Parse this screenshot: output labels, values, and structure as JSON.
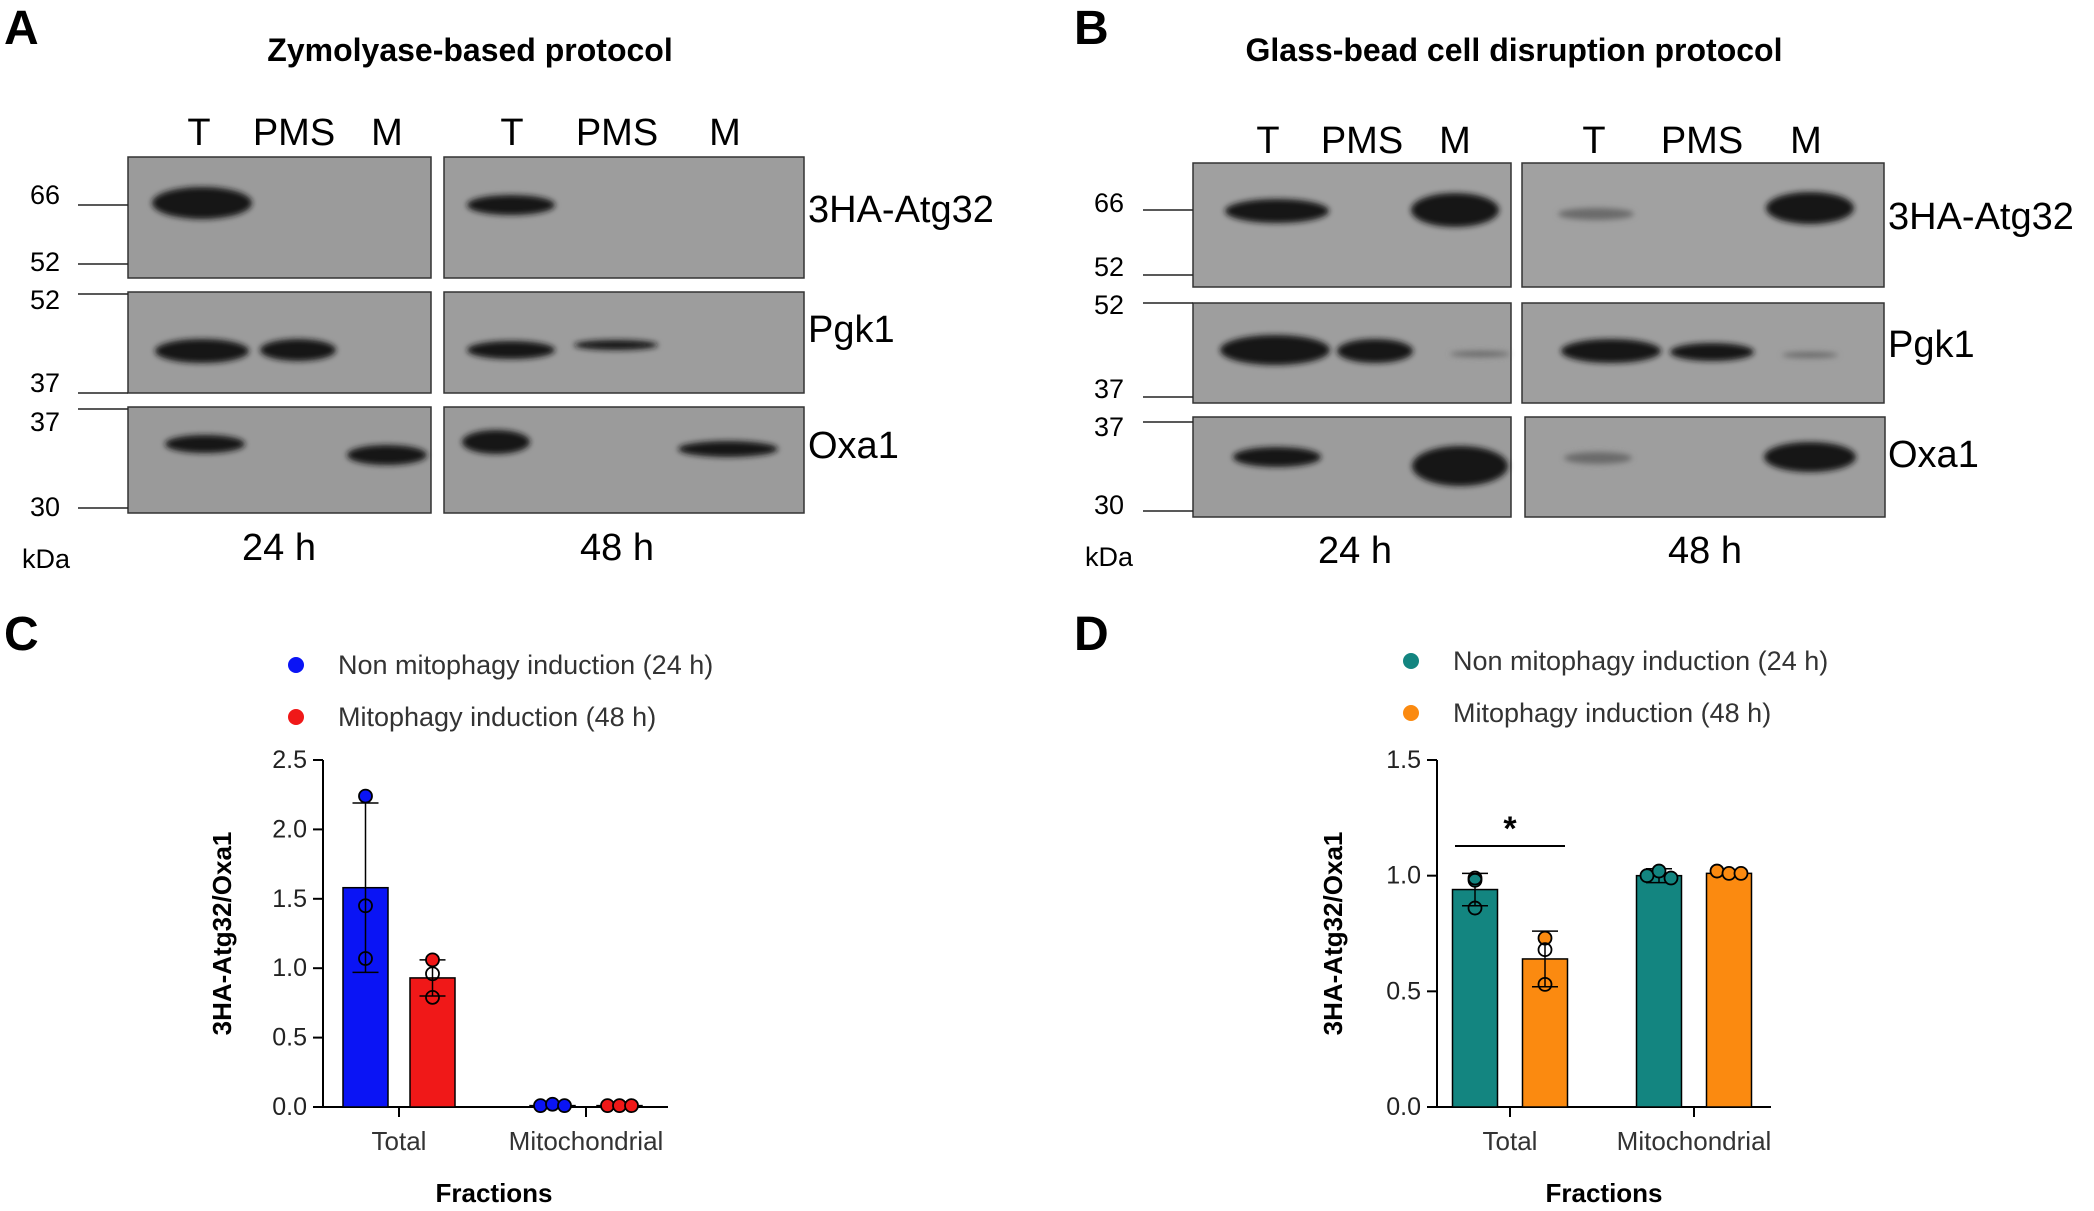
{
  "panels": {
    "A": {
      "letter": "A",
      "title": "Zymolyase-based protocol",
      "lanes_24h": [
        "T",
        "PMS",
        "M"
      ],
      "lanes_48h": [
        "T",
        "PMS",
        "M"
      ],
      "proteins": [
        "3HA-Atg32",
        "Pgk1",
        "Oxa1"
      ],
      "mw_markers": [
        "66",
        "52",
        "52",
        "37",
        "37",
        "30"
      ],
      "kda_label": "kDa",
      "time_labels": [
        "24 h",
        "48 h"
      ]
    },
    "B": {
      "letter": "B",
      "title": "Glass-bead cell disruption protocol",
      "lanes_24h": [
        "T",
        "PMS",
        "M"
      ],
      "lanes_48h": [
        "T",
        "PMS",
        "M"
      ],
      "proteins": [
        "3HA-Atg32",
        "Pgk1",
        "Oxa1"
      ],
      "mw_markers": [
        "66",
        "52",
        "52",
        "37",
        "37",
        "30"
      ],
      "kda_label": "kDa",
      "time_labels": [
        "24 h",
        "48 h"
      ]
    },
    "C": {
      "letter": "C"
    },
    "D": {
      "letter": "D"
    }
  },
  "colors": {
    "blot_bg": "#9a9a9a",
    "band": "#151515",
    "c_series1": "#0a14f5",
    "c_series2": "#f01818",
    "d_series1": "#138580",
    "d_series2": "#fb8a10"
  },
  "chart_data": [
    {
      "id": "C",
      "type": "bar",
      "title": "",
      "xlabel": "Fractions",
      "ylabel": "3HA-Atg32/Oxa1",
      "categories": [
        "Total",
        "Mitochondrial"
      ],
      "ylim": [
        0,
        2.5
      ],
      "yticks": [
        "0.0",
        "0.5",
        "1.0",
        "1.5",
        "2.0",
        "2.5"
      ],
      "legend_position": "top",
      "series": [
        {
          "name": "Non mitophagy induction (24 h)",
          "values": [
            1.58,
            0.01
          ],
          "errors": [
            0.61,
            0.0
          ],
          "points": [
            [
              2.24,
              1.45,
              1.07
            ],
            [
              0.01,
              0.02,
              0.01
            ]
          ]
        },
        {
          "name": "Mitophagy induction  (48 h)",
          "values": [
            0.93,
            0.01
          ],
          "errors": [
            0.13,
            0.0
          ],
          "points": [
            [
              1.06,
              0.96,
              0.79
            ],
            [
              0.01,
              0.01,
              0.01
            ]
          ]
        }
      ],
      "annotations": []
    },
    {
      "id": "D",
      "type": "bar",
      "title": "",
      "xlabel": "Fractions",
      "ylabel": "3HA-Atg32/Oxa1",
      "categories": [
        "Total",
        "Mitochondrial"
      ],
      "ylim": [
        0,
        1.5
      ],
      "yticks": [
        "0.0",
        "0.5",
        "1.0",
        "1.5"
      ],
      "legend_position": "top",
      "series": [
        {
          "name": "Non mitophagy induction (24 h)",
          "values": [
            0.94,
            1.0
          ],
          "errors": [
            0.07,
            0.03
          ],
          "points": [
            [
              0.98,
              0.99,
              0.86
            ],
            [
              1.0,
              1.02,
              0.99
            ]
          ]
        },
        {
          "name": "Mitophagy induction  (48 h)",
          "values": [
            0.64,
            1.01
          ],
          "errors": [
            0.12,
            0.01
          ],
          "points": [
            [
              0.73,
              0.68,
              0.53
            ],
            [
              1.02,
              1.01,
              1.01
            ]
          ]
        }
      ],
      "annotations": [
        "*"
      ]
    }
  ]
}
